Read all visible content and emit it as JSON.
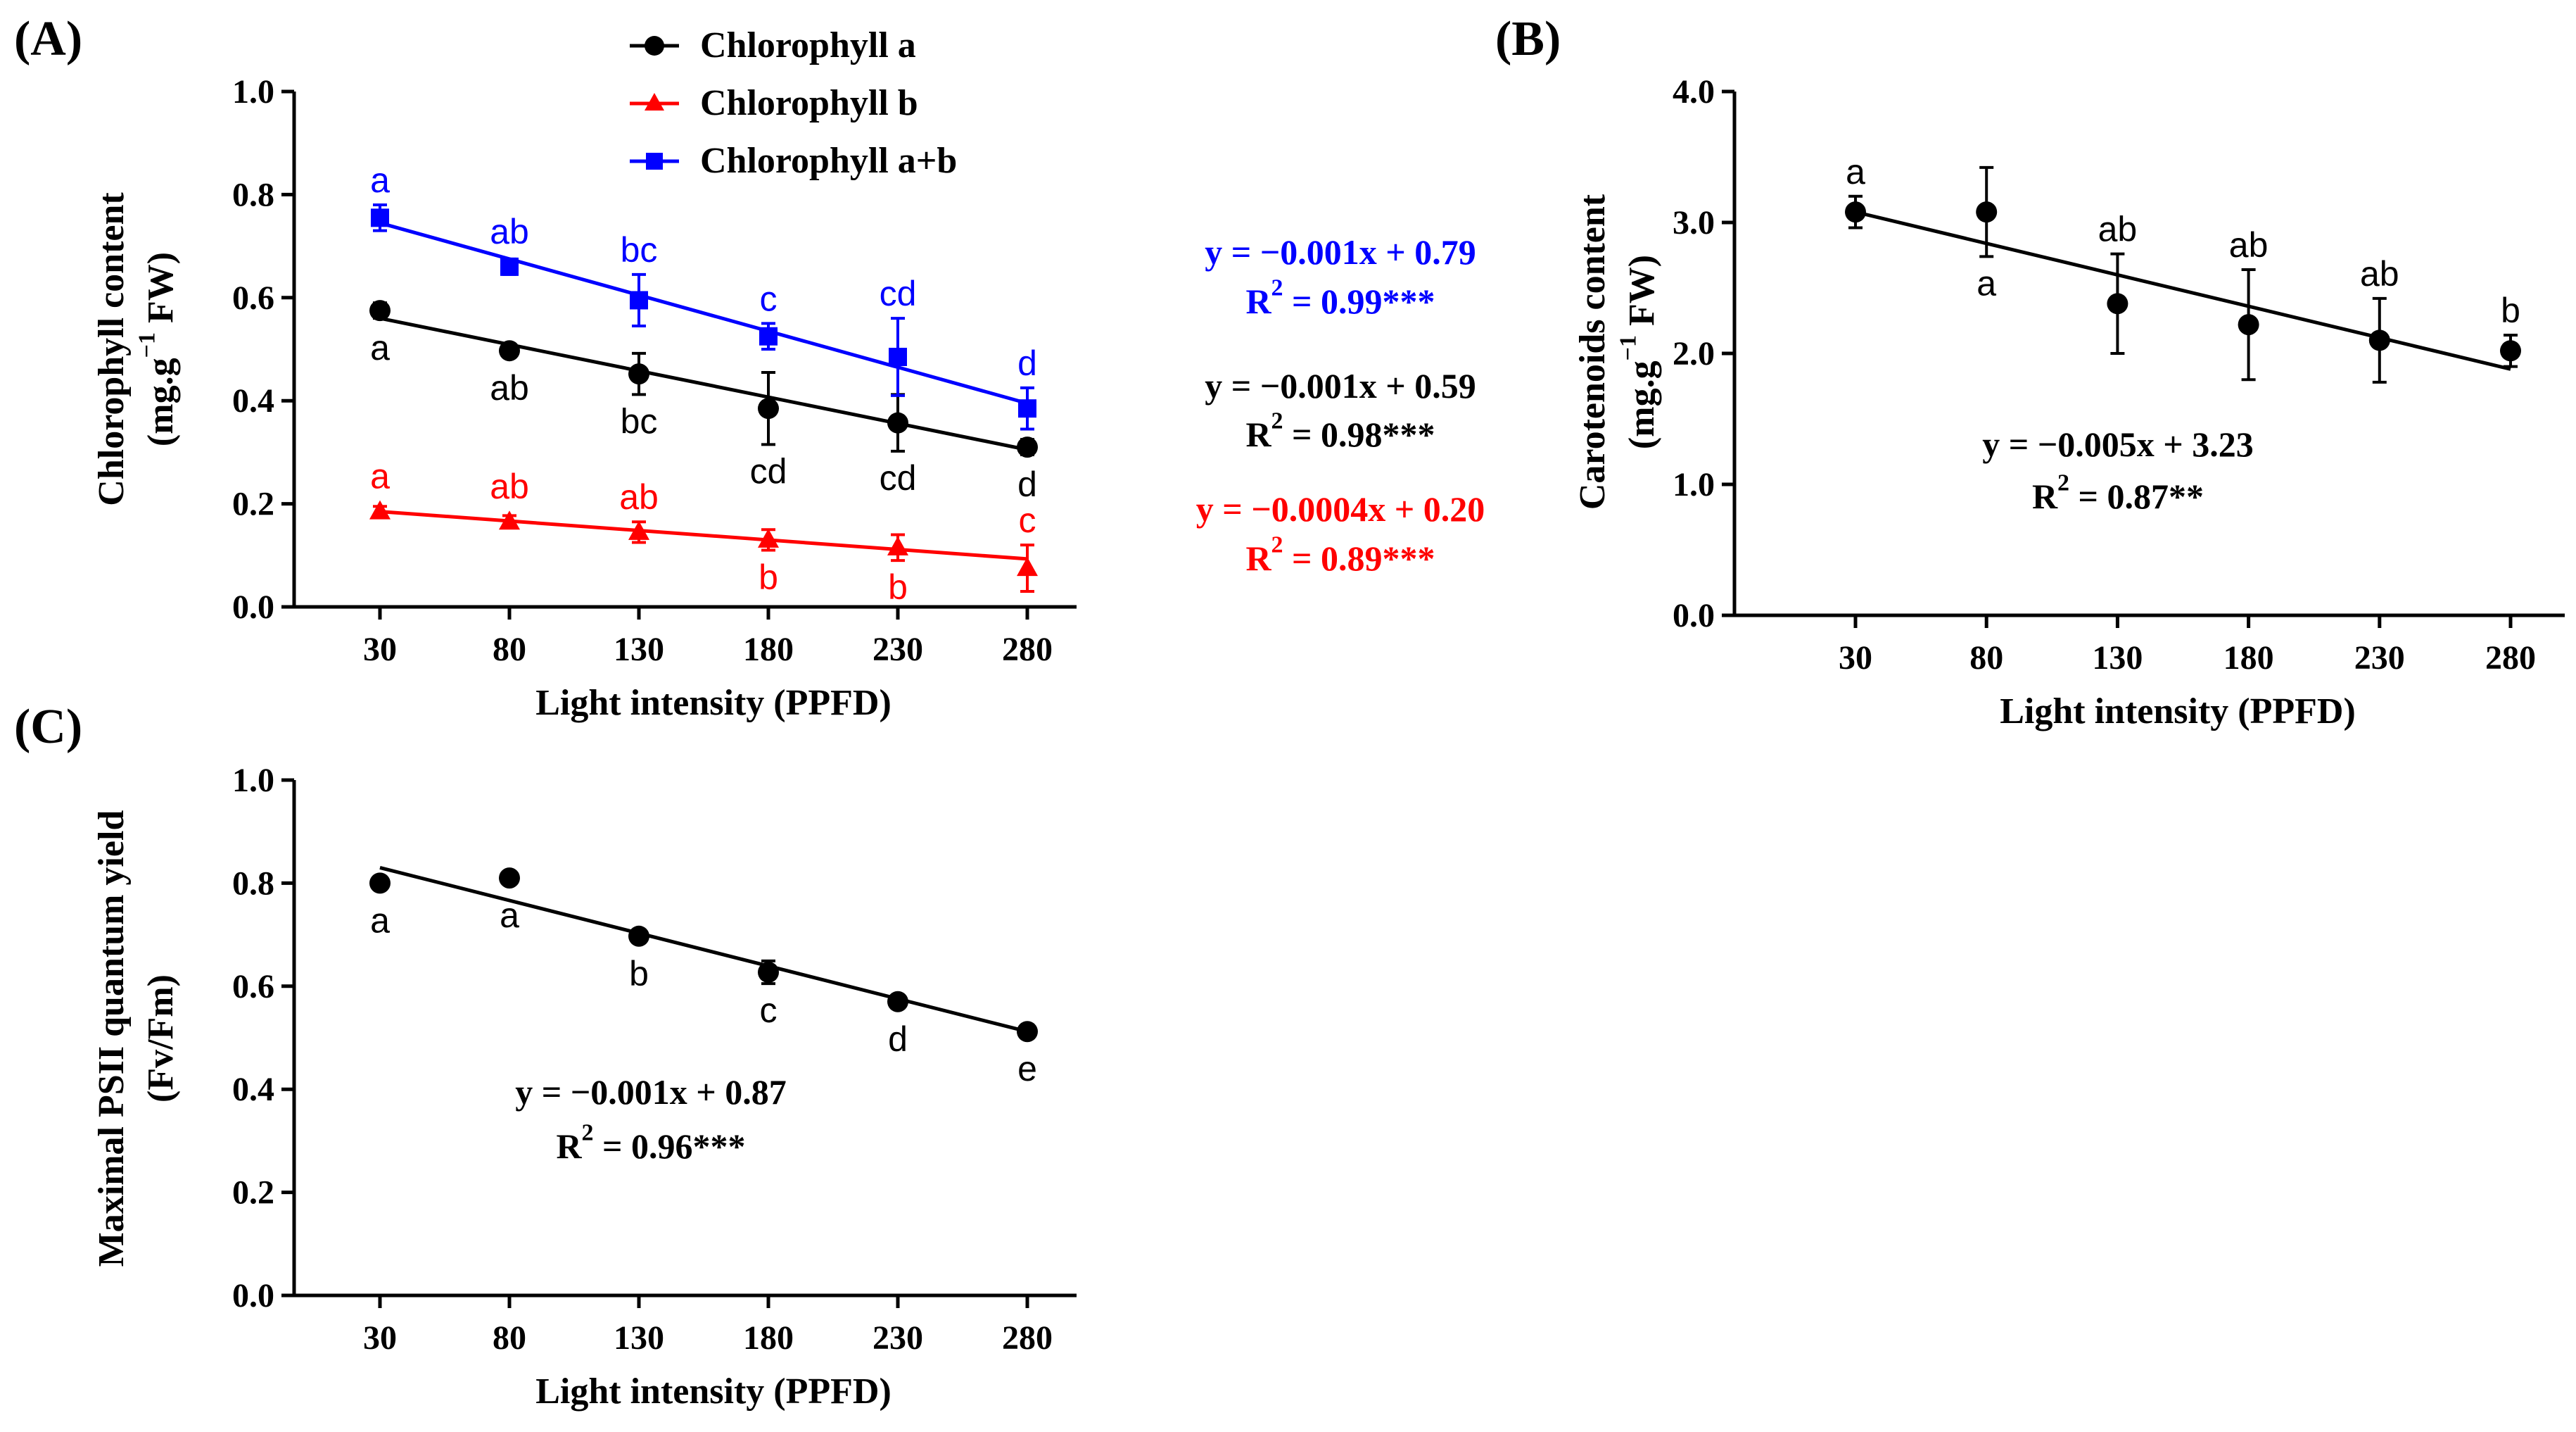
{
  "chart_data": [
    {
      "panel": "(A)",
      "type": "line",
      "xlabel": "Light intensity (PPFD)",
      "ylabel_main": "Chlorophyll content",
      "ylabel_unit_pre": "(mg.g",
      "ylabel_unit_sup": "−1",
      "ylabel_unit_post": " FW)",
      "x": [
        30,
        80,
        130,
        180,
        230,
        280
      ],
      "ylim": [
        0,
        1.0
      ],
      "yticks": [
        0,
        0.2,
        0.4,
        0.6,
        0.8,
        1.0
      ],
      "ytick_labels": [
        "0.0",
        "0.2",
        "0.4",
        "0.6",
        "0.8",
        "1.0"
      ],
      "legend_position": "top",
      "series": [
        {
          "name": "Chlorophyll a",
          "color": "#000000",
          "marker": "circle",
          "values": [
            0.575,
            0.497,
            0.452,
            0.385,
            0.357,
            0.31
          ],
          "errors": [
            0.015,
            0.01,
            0.04,
            0.07,
            0.055,
            0.015
          ],
          "letters": [
            "a",
            "ab",
            "bc",
            "cd",
            "cd",
            "d"
          ],
          "letter_side": [
            "below",
            "below",
            "below",
            "below",
            "below",
            "below"
          ],
          "fit": [
            0.56,
            0.305
          ],
          "equation": "y = −0.001x + 0.59",
          "r2_pre": "R",
          "r2_sup": "2",
          "r2_post": " = 0.98***"
        },
        {
          "name": "Chlorophyll b",
          "color": "#ff0000",
          "marker": "triangle",
          "values": [
            0.185,
            0.165,
            0.145,
            0.13,
            0.115,
            0.075
          ],
          "errors": [
            0.01,
            0.012,
            0.02,
            0.02,
            0.025,
            0.045
          ],
          "letters": [
            "a",
            "ab",
            "ab",
            "b",
            "b",
            "c"
          ],
          "letter_side": [
            "above",
            "above",
            "above",
            "below",
            "below",
            "above"
          ],
          "fit": [
            0.185,
            0.093
          ],
          "equation": "y = −0.0004x + 0.20",
          "r2_pre": "R",
          "r2_sup": "2",
          "r2_post": " = 0.89***"
        },
        {
          "name": "Chlorophyll a+b",
          "color": "#0000ff",
          "marker": "square",
          "values": [
            0.755,
            0.66,
            0.595,
            0.525,
            0.485,
            0.385
          ],
          "errors": [
            0.025,
            0.015,
            0.05,
            0.025,
            0.075,
            0.04
          ],
          "letters": [
            "a",
            "ab",
            "bc",
            "c",
            "cd",
            "d"
          ],
          "letter_side": [
            "above",
            "above",
            "above",
            "above",
            "above",
            "above"
          ],
          "fit": [
            0.745,
            0.395
          ],
          "equation": "y = −0.001x + 0.79",
          "r2_pre": "R",
          "r2_sup": "2",
          "r2_post": " = 0.99***"
        }
      ]
    },
    {
      "panel": "(B)",
      "type": "scatter",
      "xlabel": "Light intensity (PPFD)",
      "ylabel_main": "Carotenoids content",
      "ylabel_unit_pre": "(mg.g",
      "ylabel_unit_sup": "−1",
      "ylabel_unit_post": " FW)",
      "x": [
        30,
        80,
        130,
        180,
        230,
        280
      ],
      "ylim": [
        0,
        4.0
      ],
      "yticks": [
        0,
        1,
        2,
        3,
        4
      ],
      "ytick_labels": [
        "0.0",
        "1.0",
        "2.0",
        "3.0",
        "4.0"
      ],
      "series": [
        {
          "color": "#000000",
          "marker": "circle",
          "values": [
            3.08,
            3.08,
            2.38,
            2.22,
            2.1,
            2.02
          ],
          "errors": [
            0.12,
            0.34,
            0.38,
            0.42,
            0.32,
            0.12
          ],
          "letters": [
            "a",
            "a",
            "ab",
            "ab",
            "ab",
            "b"
          ],
          "letter_side": [
            "above",
            "below",
            "above",
            "above",
            "above",
            "above"
          ],
          "fit": [
            3.08,
            1.88
          ],
          "equation": "y = −0.005x + 3.23",
          "r2_pre": "R",
          "r2_sup": "2",
          "r2_post": " = 0.87**"
        }
      ]
    },
    {
      "panel": "(C)",
      "type": "scatter",
      "xlabel": "Light intensity (PPFD)",
      "ylabel_main": "Maximal PSII quantum yield",
      "ylabel_unit_pre": "(Fv/Fm)",
      "ylabel_unit_sup": "",
      "ylabel_unit_post": "",
      "x": [
        30,
        80,
        130,
        180,
        230,
        280
      ],
      "ylim": [
        0,
        1.0
      ],
      "yticks": [
        0,
        0.2,
        0.4,
        0.6,
        0.8,
        1.0
      ],
      "ytick_labels": [
        "0.0",
        "0.2",
        "0.4",
        "0.6",
        "0.8",
        "1.0"
      ],
      "series": [
        {
          "color": "#000000",
          "marker": "circle",
          "values": [
            0.8,
            0.81,
            0.697,
            0.627,
            0.57,
            0.512
          ],
          "errors": [
            0.008,
            0.008,
            0.008,
            0.022,
            0.008,
            0.008
          ],
          "letters": [
            "a",
            "a",
            "b",
            "c",
            "d",
            "e"
          ],
          "letter_side": [
            "below",
            "below",
            "below",
            "below",
            "below",
            "below"
          ],
          "fit": [
            0.83,
            0.512
          ],
          "equation": "y = −0.001x + 0.87",
          "r2_pre": "R",
          "r2_sup": "2",
          "r2_post": " = 0.96***"
        }
      ]
    }
  ]
}
